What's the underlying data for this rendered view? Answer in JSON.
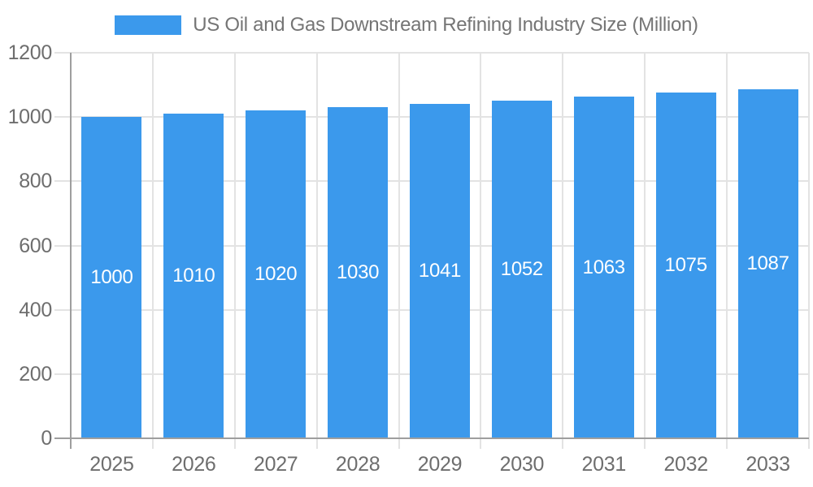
{
  "chart_data": {
    "type": "bar",
    "title": "US Oil and Gas Downstream Refining Industry Size (Million)",
    "categories": [
      "2025",
      "2026",
      "2027",
      "2028",
      "2029",
      "2030",
      "2031",
      "2032",
      "2033"
    ],
    "values": [
      1000,
      1010,
      1020,
      1030,
      1041,
      1052,
      1063,
      1075,
      1087
    ],
    "series": [
      {
        "name": "US Oil and Gas Downstream Refining Industry Size (Million)",
        "values": [
          1000,
          1010,
          1020,
          1030,
          1041,
          1052,
          1063,
          1075,
          1087
        ]
      }
    ],
    "xlabel": "",
    "ylabel": "",
    "ylim": [
      0,
      1200
    ],
    "yticks": [
      0,
      200,
      400,
      600,
      800,
      1000,
      1200
    ],
    "grid": true,
    "legend_position": "top",
    "value_labels": "inside-center"
  },
  "colors": {
    "bar": "#3b99ec",
    "bar_value_label": "#ffffff",
    "grid_line": "#e3e3e3",
    "axis_line": "#9e9e9e",
    "axis_label_text": "#6e6e6e",
    "title_text": "#757575",
    "background": "#ffffff"
  }
}
